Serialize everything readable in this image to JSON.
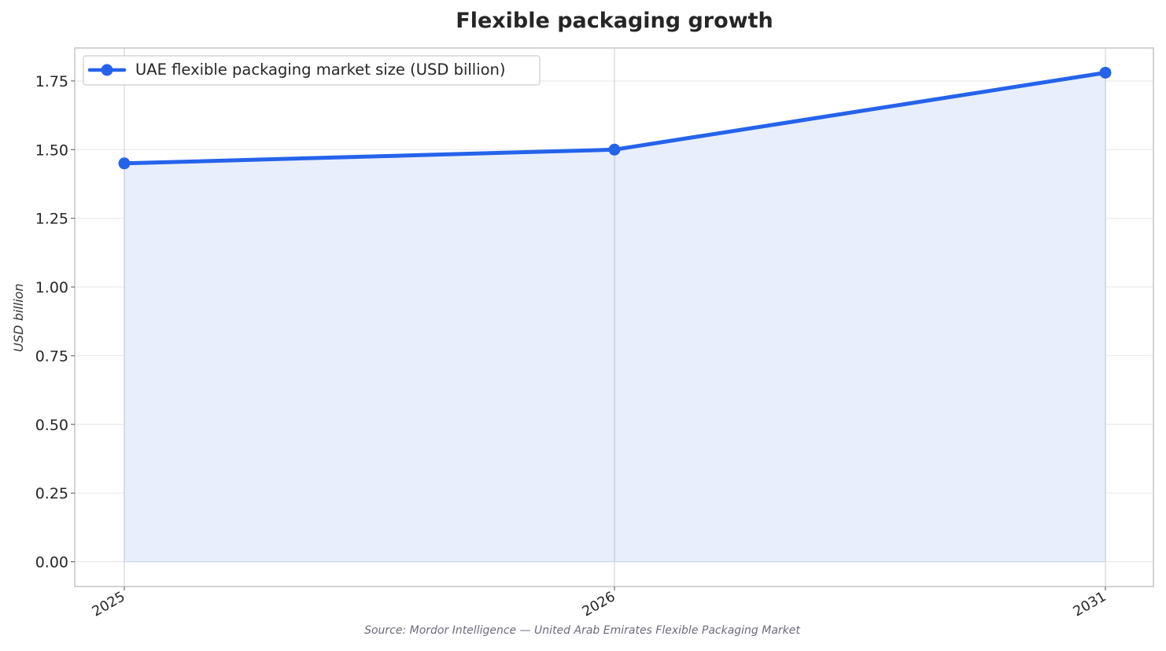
{
  "chart_data": {
    "type": "area",
    "title": "Flexible packaging growth",
    "xlabel": "",
    "ylabel": "USD billion",
    "source": "Source: Mordor Intelligence — United Arab Emirates Flexible Packaging Market",
    "categories": [
      "2025",
      "2026",
      "2031"
    ],
    "series": [
      {
        "name": "UAE flexible packaging market size (USD billion)",
        "values": [
          1.45,
          1.5,
          1.78
        ],
        "color": "#2563eb",
        "fill_color": "#e8eefb"
      }
    ],
    "ylim": [
      -0.09,
      1.87
    ],
    "yticks": [
      0.0,
      0.25,
      0.5,
      0.75,
      1.0,
      1.25,
      1.5,
      1.75
    ],
    "ytick_labels": [
      "0.00",
      "0.25",
      "0.50",
      "0.75",
      "1.00",
      "1.25",
      "1.50",
      "1.75"
    ],
    "grid": true,
    "legend_position": "top-left"
  }
}
